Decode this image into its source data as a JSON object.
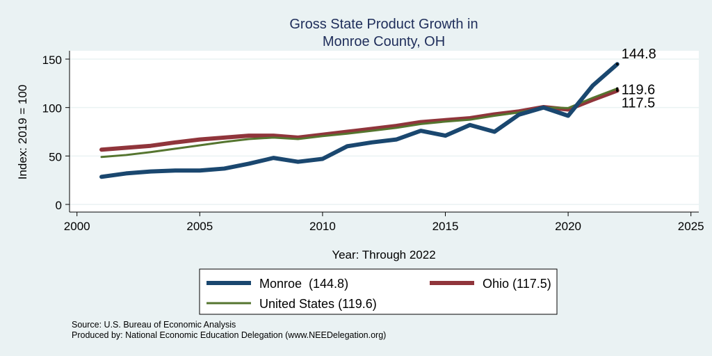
{
  "chart_data": {
    "type": "line",
    "title": [
      "Gross State Product Growth in",
      "Monroe County, OH"
    ],
    "xlabel": "Year: Through 2022",
    "ylabel": "Index: 2019 = 100",
    "xlim": [
      2000,
      2025
    ],
    "ylim": [
      0,
      150
    ],
    "xticks": [
      2000,
      2005,
      2010,
      2015,
      2020,
      2025
    ],
    "yticks": [
      0,
      50,
      100,
      150
    ],
    "grid": true,
    "legend_position": "bottom",
    "x": [
      2001,
      2002,
      2003,
      2004,
      2005,
      2006,
      2007,
      2008,
      2009,
      2010,
      2011,
      2012,
      2013,
      2014,
      2015,
      2016,
      2017,
      2018,
      2019,
      2020,
      2021,
      2022
    ],
    "series": [
      {
        "name": "Monroe",
        "legend": "Monroe  (144.8)",
        "color": "#1a476f",
        "width": 6,
        "end_label": "144.8",
        "values": [
          28.5,
          32,
          34,
          35,
          35,
          37,
          42,
          48,
          44,
          47,
          60,
          64,
          67,
          76,
          71,
          82,
          75,
          92.7,
          100,
          91.5,
          122.6,
          144.8
        ]
      },
      {
        "name": "Ohio",
        "legend": "Ohio (117.5)",
        "color": "#90353b",
        "width": 6,
        "end_label": "117.5",
        "values": [
          56.5,
          58.5,
          60.5,
          64,
          67,
          69,
          71,
          71,
          69,
          72,
          75,
          78,
          81,
          85,
          87,
          89,
          93,
          96,
          100.5,
          98,
          108,
          117.5
        ]
      },
      {
        "name": "United States",
        "legend": "United States (119.6)",
        "color": "#55752f",
        "width": 3,
        "end_label": "119.6",
        "values": [
          49,
          51,
          54,
          57.5,
          61,
          64.5,
          67.5,
          69,
          67.5,
          70.5,
          73,
          76,
          79,
          83,
          85.5,
          87.5,
          91.5,
          95,
          100,
          99.5,
          110,
          119.6
        ]
      }
    ]
  },
  "notes": {
    "source": "Source: U.S. Bureau of Economic Analysis",
    "produced": "Produced by: National Economic Education Delegation (www.NEEDelegation.org)"
  }
}
